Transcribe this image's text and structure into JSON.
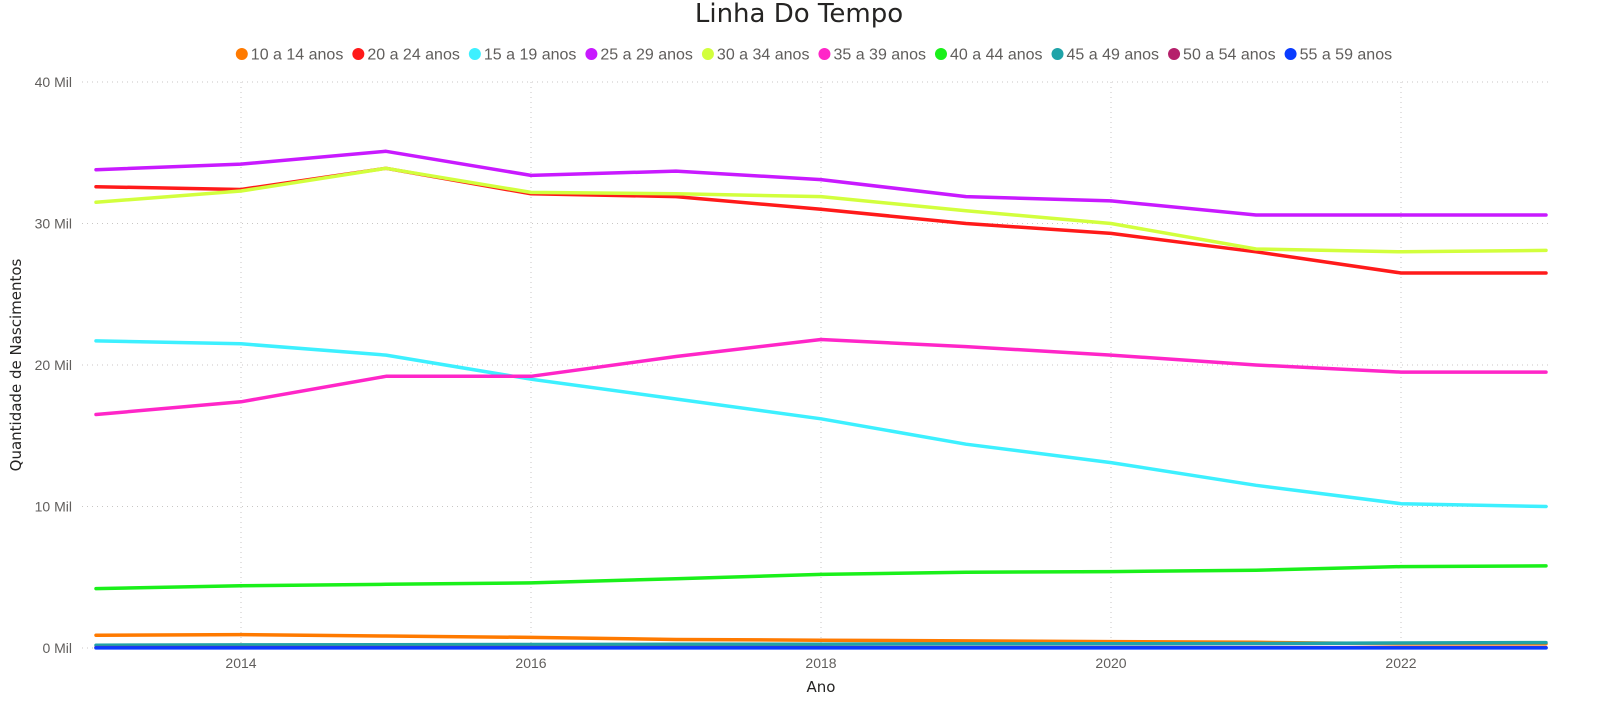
{
  "chart_data": {
    "type": "line",
    "title": "Linha Do Tempo",
    "xlabel": "Ano",
    "ylabel": "Quantidade de Nascimentos",
    "x": [
      2013,
      2014,
      2015,
      2016,
      2017,
      2018,
      2019,
      2020,
      2021,
      2022,
      2023
    ],
    "x_ticks": [
      2014,
      2016,
      2018,
      2020,
      2022
    ],
    "x_tick_labels": [
      "2014",
      "2016",
      "2018",
      "2020",
      "2022"
    ],
    "xlim": [
      2013,
      2023
    ],
    "y_ticks": [
      0,
      10000,
      20000,
      30000,
      40000
    ],
    "y_tick_labels": [
      "0 Mil",
      "10 Mil",
      "20 Mil",
      "30 Mil",
      "40 Mil"
    ],
    "ylim": [
      0,
      40000
    ],
    "grid": true,
    "legend_position": "top-center",
    "series": [
      {
        "name": "10 a 14 anos",
        "color": "#FF7A00",
        "values": [
          900,
          950,
          850,
          750,
          600,
          550,
          500,
          450,
          400,
          300,
          300
        ]
      },
      {
        "name": "20 a 24 anos",
        "color": "#FF1A1A",
        "values": [
          32600,
          32400,
          33900,
          32100,
          31900,
          31000,
          30000,
          29300,
          28000,
          26500,
          26500
        ]
      },
      {
        "name": "15 a 19 anos",
        "color": "#3DF0FF",
        "values": [
          21700,
          21500,
          20700,
          19000,
          17600,
          16200,
          14400,
          13100,
          11500,
          10200,
          10000
        ]
      },
      {
        "name": "25 a 29 anos",
        "color": "#C81AFF",
        "values": [
          33800,
          34200,
          35100,
          33400,
          33700,
          33100,
          31900,
          31600,
          30600,
          30600,
          30600
        ]
      },
      {
        "name": "30 a 34 anos",
        "color": "#D2FF3D",
        "values": [
          31500,
          32300,
          33900,
          32200,
          32100,
          31900,
          30900,
          30000,
          28200,
          28000,
          28100
        ]
      },
      {
        "name": "35 a 39 anos",
        "color": "#FF26C8",
        "values": [
          16500,
          17400,
          19200,
          19200,
          20600,
          21800,
          21300,
          20700,
          20000,
          19500,
          19500
        ]
      },
      {
        "name": "40 a 44 anos",
        "color": "#1AF01A",
        "values": [
          4200,
          4400,
          4500,
          4600,
          4900,
          5200,
          5350,
          5400,
          5500,
          5750,
          5800
        ]
      },
      {
        "name": "45 a 49 anos",
        "color": "#1FA3A8",
        "values": [
          200,
          220,
          230,
          250,
          260,
          270,
          290,
          300,
          320,
          350,
          380
        ]
      },
      {
        "name": "50 a 54 anos",
        "color": "#B5206B",
        "values": [
          30,
          30,
          30,
          30,
          30,
          30,
          30,
          30,
          30,
          30,
          30
        ]
      },
      {
        "name": "55 a 59 anos",
        "color": "#0A3CFF",
        "values": [
          5,
          5,
          5,
          5,
          5,
          5,
          5,
          5,
          5,
          5,
          5
        ]
      }
    ]
  }
}
